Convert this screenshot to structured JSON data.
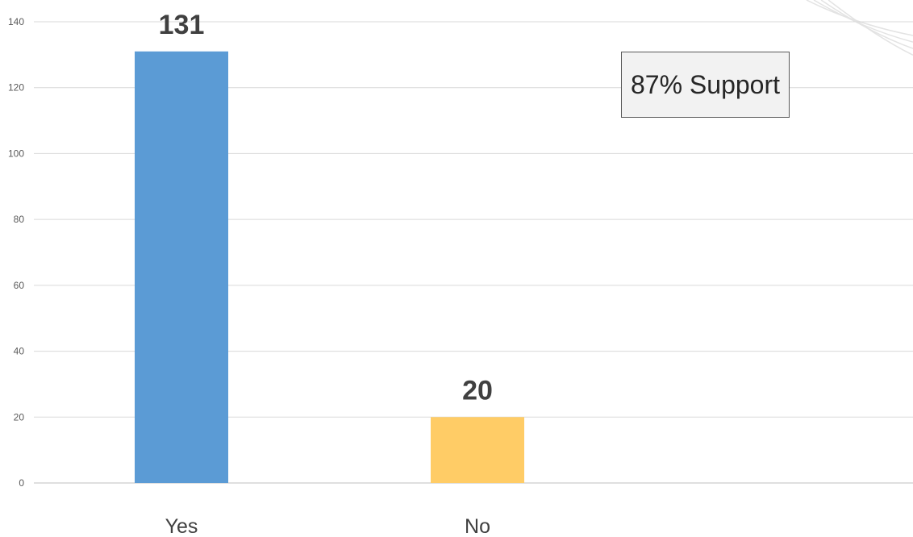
{
  "chart_data": {
    "type": "bar",
    "categories": [
      "Yes",
      "No"
    ],
    "values": [
      131,
      20
    ],
    "ylim": [
      0,
      140
    ],
    "yticks": [
      0,
      20,
      40,
      60,
      80,
      100,
      120,
      140
    ],
    "grid": true,
    "legend": "none",
    "colors": [
      "#5b9bd5",
      "#ffcc66"
    ],
    "annotation": "87% Support"
  }
}
